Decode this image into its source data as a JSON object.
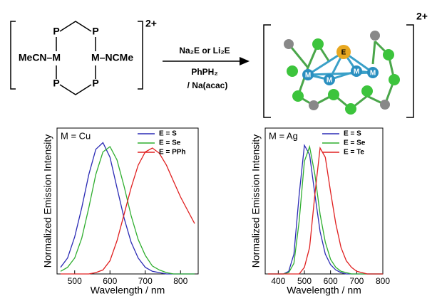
{
  "scheme": {
    "p_labels": [
      "P",
      "P",
      "P",
      "P"
    ],
    "left_metal": "MeCN–M",
    "right_metal": "M–NCMe",
    "charge_left": "2+",
    "reagent_1": "Na₂E or Li₂E",
    "reagent_2": "PhPH₂",
    "reagent_3": "/ Na(acac)",
    "cluster_e": "E",
    "cluster_m": [
      "M",
      "M",
      "M",
      "M"
    ],
    "charge_right": "2+"
  },
  "chart_data": [
    {
      "type": "line",
      "annotation": "M = Cu",
      "x_label": "Wavelength / nm",
      "y_label": "Normalized Emission Intensity",
      "x": [
        460,
        480,
        500,
        520,
        540,
        560,
        580,
        600,
        620,
        640,
        660,
        680,
        700,
        720,
        740,
        760,
        780,
        800,
        820,
        840
      ],
      "xlim": [
        450,
        850
      ],
      "xticks": [
        500,
        600,
        700,
        800
      ],
      "ylim": [
        0,
        1.1
      ],
      "legend": "top-right",
      "series": [
        {
          "name": "E = S",
          "color": "#2b2bb5",
          "values": [
            0.05,
            0.12,
            0.28,
            0.5,
            0.75,
            0.94,
            0.99,
            0.88,
            0.65,
            0.42,
            0.24,
            0.12,
            0.05,
            0.02,
            0.01,
            0,
            0,
            0,
            0,
            0
          ]
        },
        {
          "name": "E = Se",
          "color": "#2fae2f",
          "values": [
            0.02,
            0.05,
            0.12,
            0.27,
            0.5,
            0.75,
            0.92,
            0.96,
            0.86,
            0.66,
            0.44,
            0.26,
            0.14,
            0.06,
            0.03,
            0.01,
            0,
            0,
            0,
            0
          ]
        },
        {
          "name": "E = PPh",
          "color": "#e02020",
          "values": [
            0,
            0,
            0,
            0,
            0,
            0.01,
            0.03,
            0.1,
            0.25,
            0.45,
            0.65,
            0.82,
            0.92,
            0.95,
            0.91,
            0.82,
            0.7,
            0.58,
            0.48,
            0.38
          ]
        }
      ]
    },
    {
      "type": "line",
      "annotation": "M = Ag",
      "x_label": "Wavelength / nm",
      "y_label": "Normalized Emission Intensity",
      "x": [
        360,
        380,
        400,
        420,
        440,
        460,
        480,
        500,
        520,
        540,
        560,
        580,
        600,
        620,
        640,
        660,
        680,
        700,
        720,
        740,
        760,
        780,
        800
      ],
      "xlim": [
        350,
        800
      ],
      "xticks": [
        400,
        500,
        600,
        700,
        800
      ],
      "ylim": [
        0,
        1.1
      ],
      "legend": "top-right",
      "series": [
        {
          "name": "E = S",
          "color": "#2b2bb5",
          "values": [
            0,
            0,
            0,
            0,
            0.02,
            0.15,
            0.6,
            0.97,
            0.9,
            0.6,
            0.32,
            0.15,
            0.07,
            0.03,
            0.01,
            0,
            0,
            0,
            0,
            0,
            0,
            0,
            0
          ]
        },
        {
          "name": "E = Se",
          "color": "#2fae2f",
          "values": [
            0,
            0,
            0,
            0,
            0.01,
            0.08,
            0.4,
            0.85,
            0.96,
            0.75,
            0.45,
            0.24,
            0.11,
            0.05,
            0.02,
            0.01,
            0,
            0,
            0,
            0,
            0,
            0,
            0
          ]
        },
        {
          "name": "E = Te",
          "color": "#e02020",
          "values": [
            0,
            0,
            0,
            0,
            0,
            0,
            0,
            0.05,
            0.2,
            0.6,
            0.95,
            0.88,
            0.62,
            0.38,
            0.2,
            0.1,
            0.05,
            0.02,
            0.01,
            0,
            0,
            0,
            0
          ]
        }
      ]
    }
  ]
}
